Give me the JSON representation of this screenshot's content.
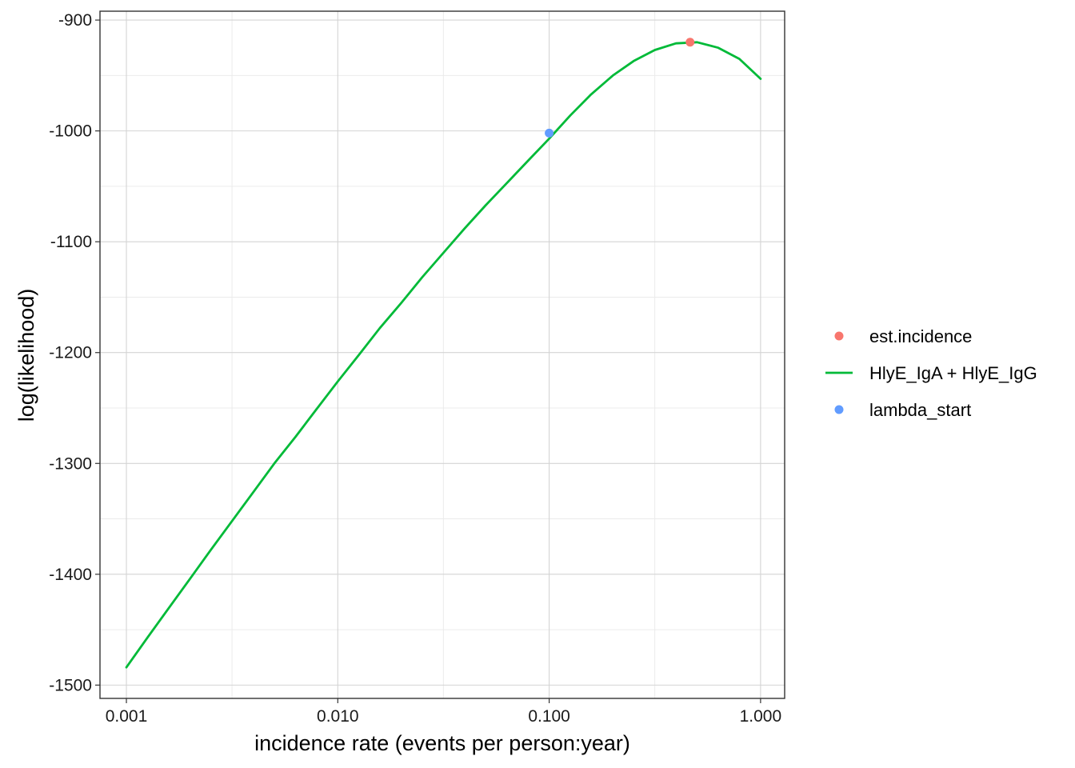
{
  "chart_data": {
    "type": "line",
    "title": "",
    "xlabel": "incidence rate (events per person:year)",
    "ylabel": "log(likelihood)",
    "x_scale": "log10",
    "xlim": [
      0.00075,
      1.3
    ],
    "ylim": [
      -1512,
      -892
    ],
    "x_ticks": [
      {
        "value": 0.001,
        "label": "0.001"
      },
      {
        "value": 0.01,
        "label": "0.010"
      },
      {
        "value": 0.1,
        "label": "0.100"
      },
      {
        "value": 1.0,
        "label": "1.000"
      }
    ],
    "x_minor_ticks": [
      0.00316,
      0.0316,
      0.316
    ],
    "y_ticks": [
      {
        "value": -900,
        "label": "-900"
      },
      {
        "value": -1000,
        "label": "-1000"
      },
      {
        "value": -1100,
        "label": "-1100"
      },
      {
        "value": -1200,
        "label": "-1200"
      },
      {
        "value": -1300,
        "label": "-1300"
      },
      {
        "value": -1400,
        "label": "-1400"
      },
      {
        "value": -1500,
        "label": "-1500"
      }
    ],
    "y_minor_ticks": [
      -950,
      -1050,
      -1150,
      -1250,
      -1350,
      -1450
    ],
    "grid": true,
    "legend_position": "right",
    "series": [
      {
        "name": "HlyE_IgA + HlyE_IgG",
        "kind": "line",
        "color": "#00BA38",
        "x": [
          0.001,
          0.00126,
          0.00158,
          0.002,
          0.00251,
          0.00316,
          0.00398,
          0.00501,
          0.00631,
          0.00794,
          0.01,
          0.0126,
          0.0158,
          0.02,
          0.0251,
          0.0316,
          0.0398,
          0.0501,
          0.0631,
          0.0794,
          0.1,
          0.126,
          0.158,
          0.2,
          0.251,
          0.316,
          0.398,
          0.501,
          0.631,
          0.794,
          1.0
        ],
        "y": [
          -1484,
          -1457,
          -1431,
          -1404,
          -1378,
          -1352,
          -1326,
          -1300,
          -1276,
          -1251,
          -1226,
          -1202,
          -1178,
          -1155,
          -1132,
          -1110,
          -1088,
          -1067,
          -1047,
          -1027,
          -1007,
          -986,
          -967,
          -950,
          -937,
          -927,
          -921,
          -920,
          -925,
          -935,
          -953
        ]
      },
      {
        "name": "est.incidence",
        "kind": "point",
        "color": "#F8766D",
        "x": [
          0.464
        ],
        "y": [
          -920
        ]
      },
      {
        "name": "lambda_start",
        "kind": "point",
        "color": "#619CFF",
        "x": [
          0.1
        ],
        "y": [
          -1002
        ]
      }
    ],
    "legend": [
      {
        "label": "est.incidence",
        "kind": "point",
        "color": "#F8766D"
      },
      {
        "label": "HlyE_IgA + HlyE_IgG",
        "kind": "line",
        "color": "#00BA38"
      },
      {
        "label": "lambda_start",
        "kind": "point",
        "color": "#619CFF"
      }
    ]
  }
}
